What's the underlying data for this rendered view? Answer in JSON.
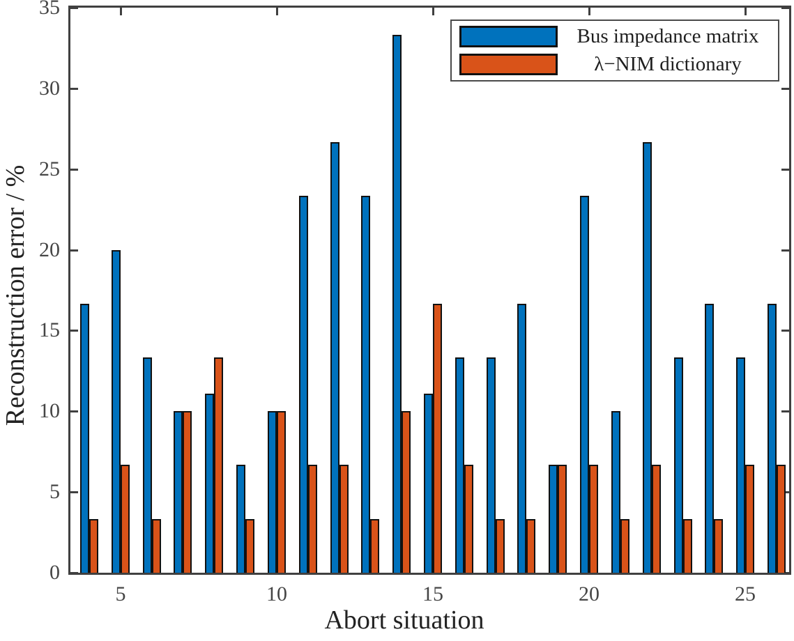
{
  "figure": {
    "background_color": "#ffffff",
    "axis_color": "#404040",
    "tick_label_color": "#454545",
    "label_color": "#222222",
    "bar_edge_color": "#111111"
  },
  "chart_data": {
    "type": "bar",
    "title": "",
    "xlabel": "Abort situation",
    "ylabel": "Reconstruction error / %",
    "xlim": [
      3.4,
      26.4
    ],
    "ylim": [
      0,
      35
    ],
    "xticks": [
      5,
      10,
      15,
      20,
      25
    ],
    "yticks": [
      0,
      5,
      10,
      15,
      20,
      25,
      30,
      35
    ],
    "grid": false,
    "legend_position": "top-right-inside",
    "categories": [
      4,
      5,
      6,
      7,
      8,
      9,
      10,
      11,
      12,
      13,
      14,
      15,
      16,
      17,
      18,
      19,
      20,
      21,
      22,
      23,
      24,
      25,
      26
    ],
    "series": [
      {
        "name": "Bus impedance matrix",
        "color": "#0072BD",
        "values": [
          16.67,
          20,
          13.33,
          10,
          11.11,
          6.67,
          10,
          23.33,
          26.67,
          23.33,
          33.33,
          11.11,
          13.33,
          13.33,
          16.67,
          6.67,
          23.33,
          10,
          26.67,
          13.33,
          16.67,
          13.33,
          16.67
        ]
      },
      {
        "name": "λ−NIM dictionary",
        "color": "#D95319",
        "values": [
          3.33,
          6.67,
          3.33,
          10,
          13.33,
          3.33,
          10,
          6.67,
          6.67,
          3.33,
          10,
          16.67,
          6.67,
          3.33,
          3.33,
          6.67,
          6.67,
          3.33,
          6.67,
          3.33,
          3.33,
          6.67,
          6.67
        ]
      }
    ]
  }
}
